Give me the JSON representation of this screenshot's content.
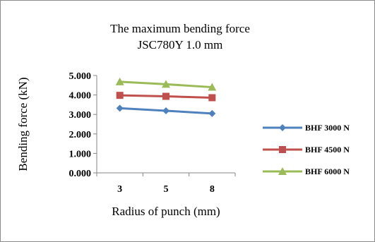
{
  "chart_data": {
    "type": "line",
    "title": "The maximum bending force",
    "subtitle": "JSC780Y 1.0 mm",
    "xlabel": "Radius of punch (mm)",
    "ylabel": "Bending force (kN)",
    "categories": [
      "3",
      "5",
      "8"
    ],
    "ylim": [
      0,
      5
    ],
    "yticks": [
      "0.000",
      "1.000",
      "2.000",
      "3.000",
      "4.000",
      "5.000"
    ],
    "grid": false,
    "legend_position": "right",
    "series": [
      {
        "name": "BHF 3000 N",
        "values": [
          3.32,
          3.19,
          3.05
        ],
        "color": "#4f81bd",
        "marker": "diamond"
      },
      {
        "name": "BHF 4500 N",
        "values": [
          3.98,
          3.93,
          3.86
        ],
        "color": "#c0504d",
        "marker": "square"
      },
      {
        "name": "BHF 6000 N",
        "values": [
          4.68,
          4.55,
          4.4
        ],
        "color": "#9bbb59",
        "marker": "triangle"
      }
    ]
  }
}
